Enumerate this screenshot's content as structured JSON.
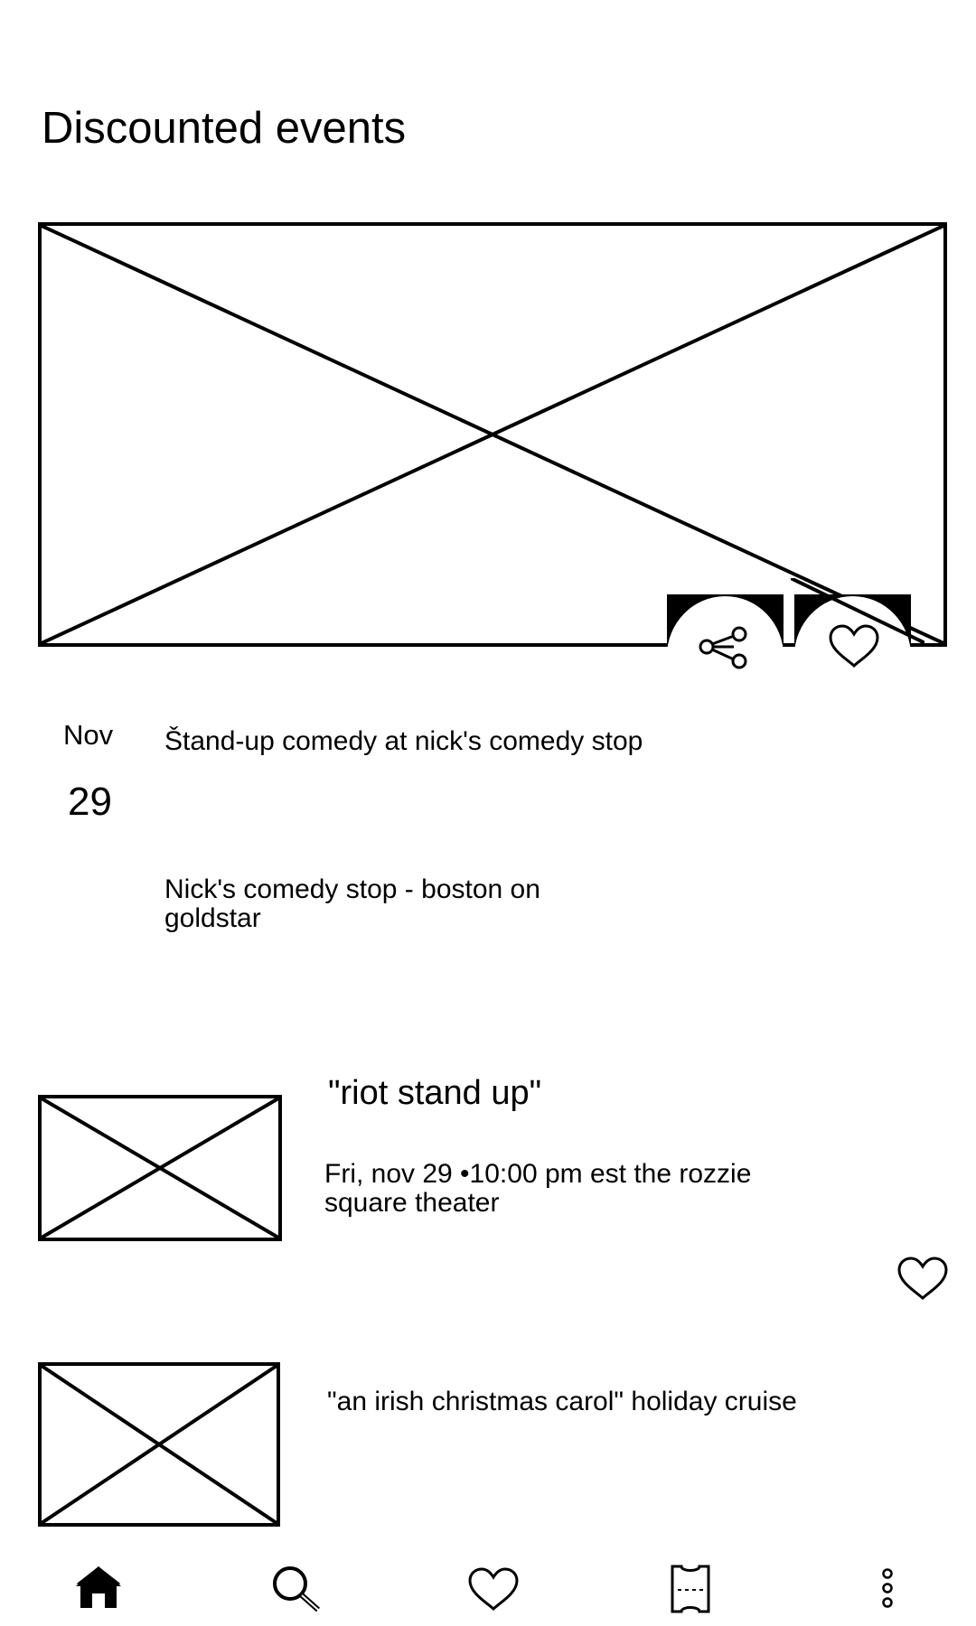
{
  "header": {
    "title": "Discounted events"
  },
  "featured": {
    "image_icon": "image-placeholder",
    "actions": [
      {
        "icon": "share-icon"
      },
      {
        "icon": "heart-icon"
      }
    ],
    "date": {
      "month": "Nov",
      "day": "29"
    },
    "title": "Štand-up comedy at nick's comedy stop",
    "venue": "Nick's comedy stop - boston on goldstar"
  },
  "events": [
    {
      "title": "\"riot stand up\"",
      "subtitle": "Fri, nov 29 •10:00 pm est the rozzie square theater",
      "favorite_icon": "heart-icon"
    },
    {
      "title": "\"an irish christmas carol\" holiday cruise"
    }
  ],
  "bottom_nav": [
    {
      "icon": "home-icon",
      "active": true
    },
    {
      "icon": "search-icon"
    },
    {
      "icon": "heart-icon"
    },
    {
      "icon": "ticket-icon"
    },
    {
      "icon": "more-vertical-icon"
    }
  ]
}
